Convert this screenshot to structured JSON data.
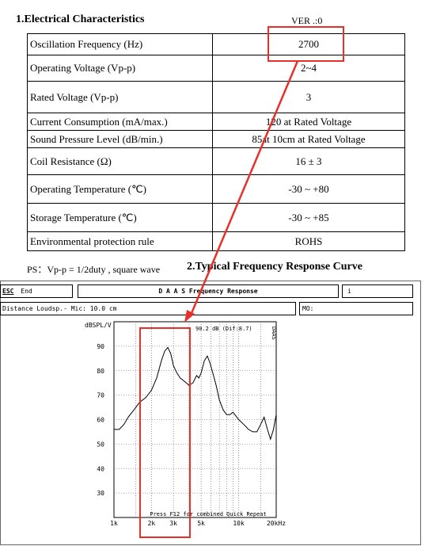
{
  "header": {
    "title": "1.Electrical Characteristics",
    "version": "VER .:0"
  },
  "spec_rows": [
    {
      "param": "Oscillation Frequency (Hz)",
      "value": "2700"
    },
    {
      "param": "Operating Voltage (Vp-p)",
      "value": "2~4"
    },
    {
      "param": "Rated Voltage (Vp-p)",
      "value": "3"
    },
    {
      "param": "Current Consumption (mA/max.)",
      "value": "120 at Rated Voltage"
    },
    {
      "param": "Sound Pressure Level (dB/min.)",
      "value": "85at 10cm at Rated Voltage"
    },
    {
      "param": "Coil Resistance (Ω)",
      "value": "16 ± 3"
    },
    {
      "param": "Operating Temperature (℃)",
      "value": "-30 ~ +80"
    },
    {
      "param": "Storage Temperature (℃)",
      "value": "-30 ~ +85"
    },
    {
      "param": "Environmental protection rule",
      "value": "ROHS"
    }
  ],
  "footnote": "PS：Vp-p = 1/2duty , square wave",
  "section2_title": "2.Typical Frequency Response Curve",
  "daas": {
    "esc_label": "ESC",
    "end_label": "End",
    "title": "D A A S   Frequency Response",
    "title_right": "i",
    "info": "Distance Loudsp.- Mic: 10.0 cm",
    "info_right": "MO:",
    "readout": "90.2 dB (Dif:8.7)",
    "hint": "Press F12 for combined Quick Repeat",
    "side_tag": "DAAS"
  },
  "annotation_color": "#e8302a",
  "chart_data": {
    "type": "line",
    "ylabel": "dBSPL/V",
    "ylim": [
      20,
      100
    ],
    "yticks": [
      "90",
      "80",
      "70",
      "60",
      "50",
      "40",
      "30"
    ],
    "ytick_values": [
      90,
      80,
      70,
      60,
      50,
      40,
      30
    ],
    "xscale": "log",
    "xlim": [
      1000,
      20000
    ],
    "xticks": [
      "1k",
      "2k",
      "3k",
      "5k",
      "10k",
      "20kHz"
    ],
    "xtick_values": [
      1000,
      2000,
      3000,
      5000,
      10000,
      20000
    ],
    "grid": true,
    "series": [
      {
        "x": [
          1000,
          1100,
          1200,
          1300,
          1450,
          1600,
          1800,
          2000,
          2200,
          2400,
          2550,
          2700,
          2850,
          3000,
          3200,
          3400,
          3600,
          3800,
          4000,
          4300,
          4600,
          4800,
          5000,
          5300,
          5600,
          5900,
          6200,
          6600,
          7000,
          7500,
          8000,
          8500,
          9000,
          10000,
          11000,
          12000,
          13000,
          14000,
          15000,
          16000,
          17000,
          18000,
          19000,
          20000
        ],
        "y": [
          56,
          56,
          58,
          61,
          64,
          67,
          69,
          72,
          77,
          84,
          88,
          89.5,
          87,
          82,
          79,
          77,
          76,
          75,
          74,
          75,
          78,
          77,
          79,
          84,
          86,
          83,
          79,
          74,
          68,
          64,
          62,
          62,
          63,
          60,
          58,
          56,
          55,
          55,
          58,
          61,
          56,
          52,
          56,
          62
        ]
      }
    ]
  }
}
